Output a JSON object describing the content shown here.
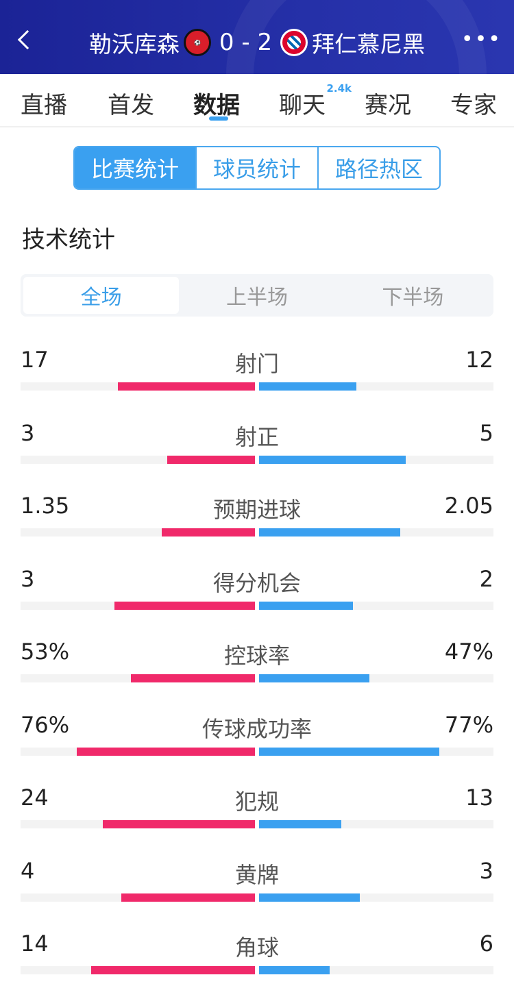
{
  "header": {
    "home": "勒沃库森",
    "away": "拜仁慕尼黑",
    "score": "0 - 2",
    "home_logo": "BAYER 04",
    "away_logo": "FC BAYERN MÜNCHEN",
    "more": "•••"
  },
  "tabs": [
    {
      "label": "直播"
    },
    {
      "label": "首发"
    },
    {
      "label": "数据",
      "active": true
    },
    {
      "label": "聊天",
      "badge": "2.4k"
    },
    {
      "label": "赛况"
    },
    {
      "label": "专家"
    }
  ],
  "segments": [
    "比赛统计",
    "球员统计",
    "路径热区"
  ],
  "section_title": "技术统计",
  "periods": [
    "全场",
    "上半场",
    "下半场"
  ],
  "colors": {
    "home": "#f0296a",
    "away": "#3aa0f0",
    "accent": "#3aa0f0",
    "header": "#1b2396"
  },
  "stats": [
    {
      "name": "射门",
      "left": "17",
      "right": "12",
      "left_fill": 0.586,
      "right_fill": 0.414
    },
    {
      "name": "射正",
      "left": "3",
      "right": "5",
      "left_fill": 0.375,
      "right_fill": 0.625
    },
    {
      "name": "预期进球",
      "left": "1.35",
      "right": "2.05",
      "left_fill": 0.397,
      "right_fill": 0.603
    },
    {
      "name": "得分机会",
      "left": "3",
      "right": "2",
      "left_fill": 0.6,
      "right_fill": 0.4
    },
    {
      "name": "控球率",
      "left": "53%",
      "right": "47%",
      "left_fill": 0.53,
      "right_fill": 0.47
    },
    {
      "name": "传球成功率",
      "left": "76%",
      "right": "77%",
      "left_fill": 0.76,
      "right_fill": 0.77
    },
    {
      "name": "犯规",
      "left": "24",
      "right": "13",
      "left_fill": 0.649,
      "right_fill": 0.351
    },
    {
      "name": "黄牌",
      "left": "4",
      "right": "3",
      "left_fill": 0.571,
      "right_fill": 0.429
    },
    {
      "name": "角球",
      "left": "14",
      "right": "6",
      "left_fill": 0.7,
      "right_fill": 0.3
    }
  ]
}
